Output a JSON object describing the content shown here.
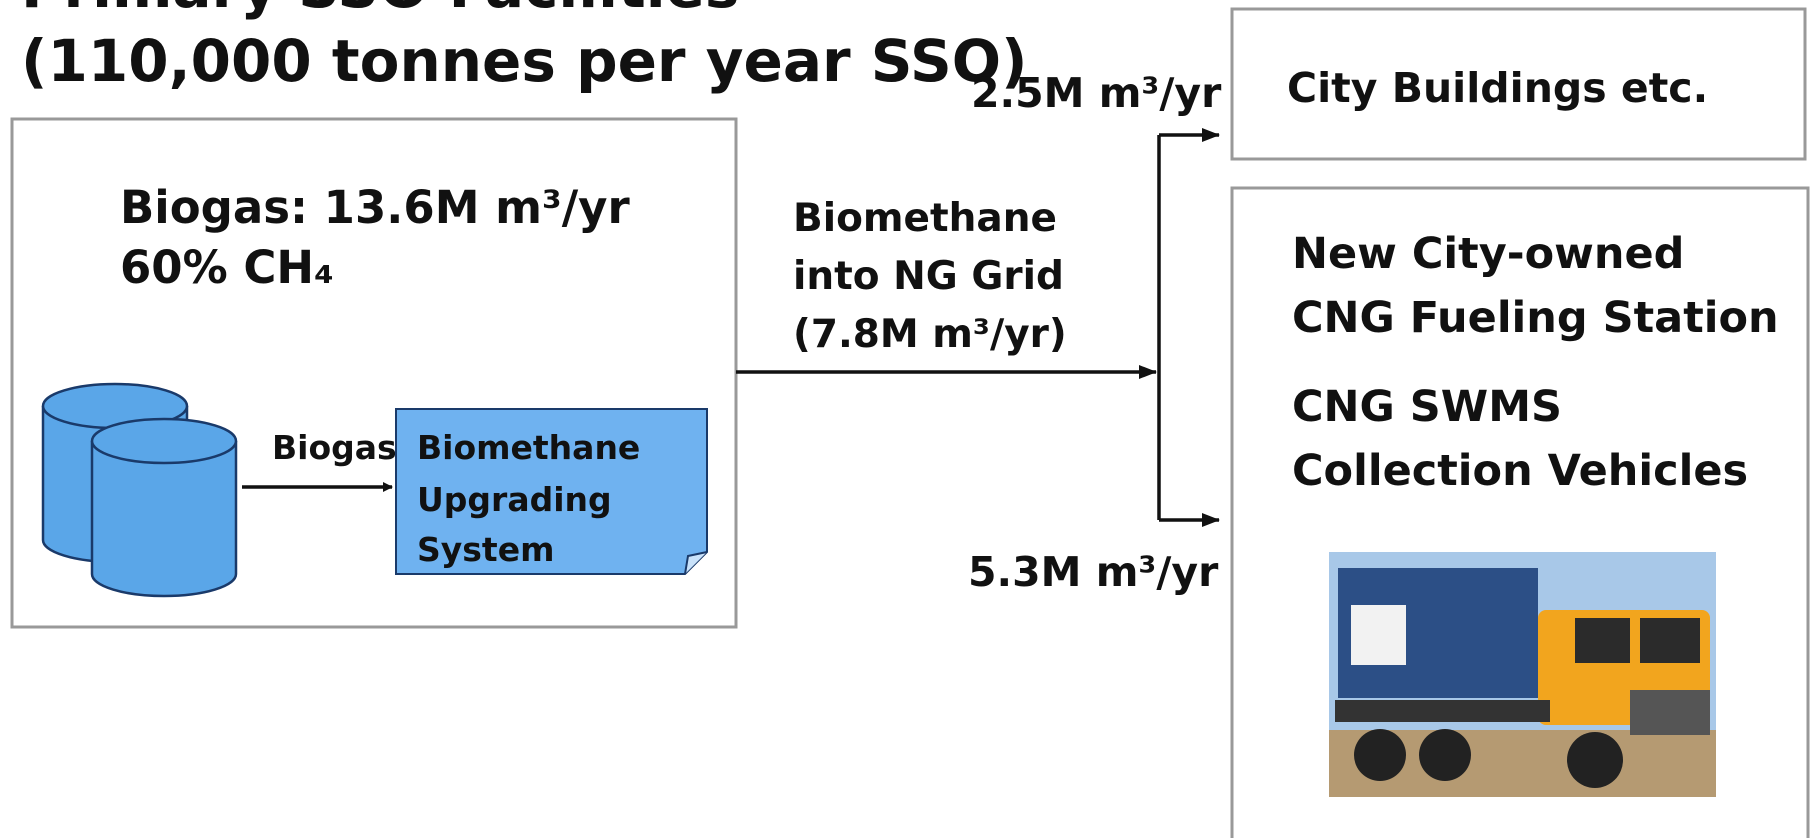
{
  "header": {
    "title_lines": [
      "Primary SSO Facilities",
      "(110,000 tonnes per year SSO)"
    ]
  },
  "source_box": {
    "lines": [
      "Biogas: 13.6M m³/yr",
      "60% CH₄"
    ],
    "arrow_label": "Biogas",
    "upgrading_system": [
      "Biomethane",
      "Upgrading",
      "System"
    ]
  },
  "grid_flow": {
    "lines": [
      "Biomethane",
      "into NG Grid",
      "(7.8M m³/yr)"
    ]
  },
  "branches": {
    "upper": "2.5M m³/yr",
    "lower": "5.3M m³/yr"
  },
  "destinations": {
    "city_buildings": "City Buildings etc.",
    "fueling_station": [
      "New City-owned",
      "CNG Fueling Station"
    ],
    "vehicles": [
      "CNG SWMS",
      "Collection Vehicles"
    ]
  }
}
